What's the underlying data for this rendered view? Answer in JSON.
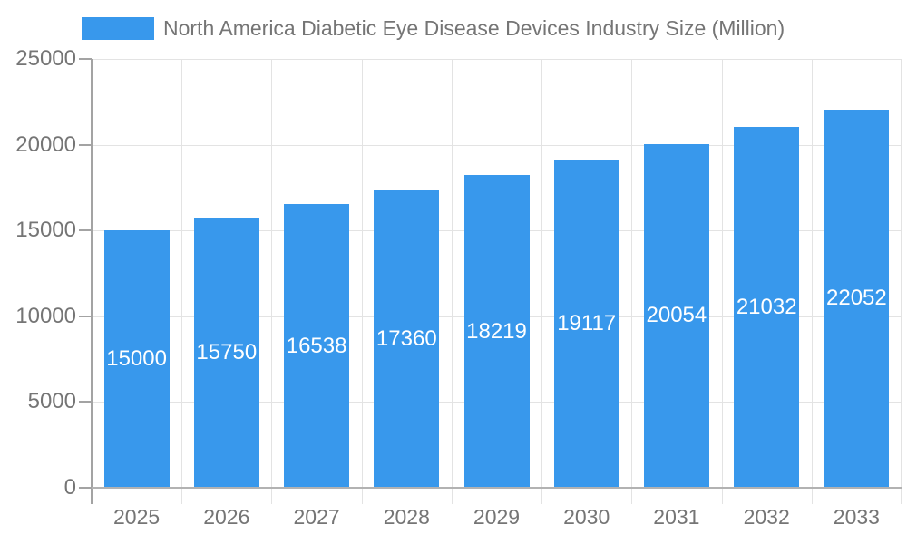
{
  "legend": {
    "label": "North America Diabetic Eye Disease Devices Industry Size (Million)"
  },
  "chart_data": {
    "type": "bar",
    "title": "North America Diabetic Eye Disease Devices Industry Size (Million)",
    "categories": [
      "2025",
      "2026",
      "2027",
      "2028",
      "2029",
      "2030",
      "2031",
      "2032",
      "2033"
    ],
    "values": [
      15000,
      15750,
      16538,
      17360,
      18219,
      19117,
      20054,
      21032,
      22052
    ],
    "xlabel": "",
    "ylabel": "",
    "ylim": [
      0,
      25000
    ],
    "yticks": [
      0,
      5000,
      10000,
      15000,
      20000,
      25000
    ],
    "grid": true,
    "legend_position": "top-left",
    "bar_color": "#3898ec",
    "bar_label_color": "#ffffff",
    "text_color": "#757575",
    "grid_color": "#e3e3e3",
    "axis_color": "#a3a3a3"
  }
}
